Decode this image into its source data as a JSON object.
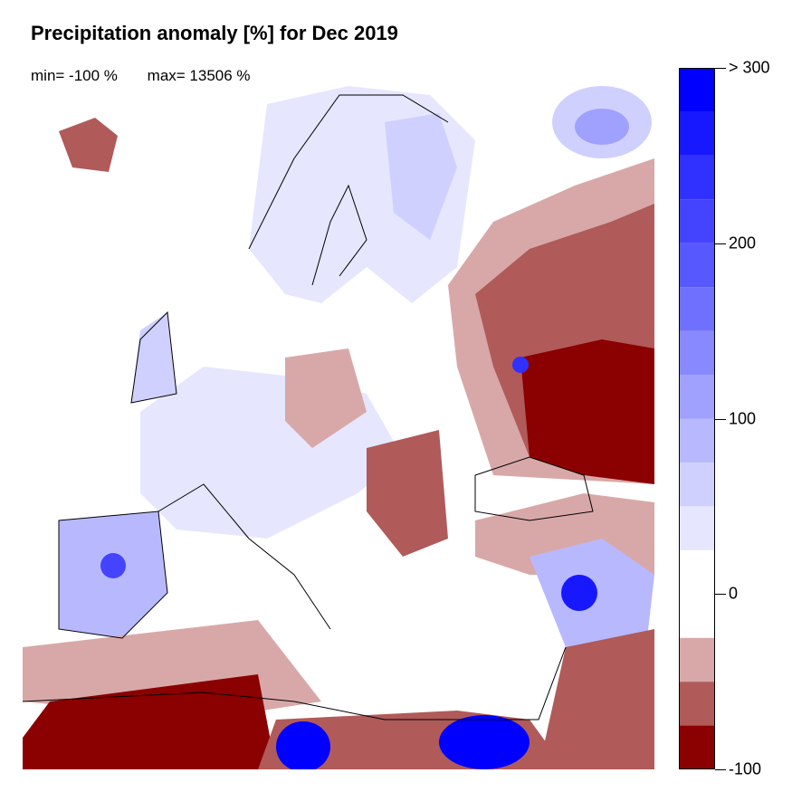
{
  "title": "Precipitation anomaly [%] for Dec 2019",
  "stats": {
    "min": "min= -100 %",
    "max": "max= 13506 %"
  },
  "colorbar": {
    "range": [
      -100,
      300
    ],
    "bin_width": 25,
    "bins": [
      {
        "from": -100,
        "to": -75,
        "color": "#8B0000"
      },
      {
        "from": -75,
        "to": -50,
        "color": "#B05A5A"
      },
      {
        "from": -50,
        "to": -25,
        "color": "#D8A8A8"
      },
      {
        "from": -25,
        "to": 25,
        "color": "#FFFFFF"
      },
      {
        "from": 25,
        "to": 50,
        "color": "#E6E6FF"
      },
      {
        "from": 50,
        "to": 75,
        "color": "#D0D0FF"
      },
      {
        "from": 75,
        "to": 100,
        "color": "#B8B8FF"
      },
      {
        "from": 100,
        "to": 125,
        "color": "#A0A0FF"
      },
      {
        "from": 125,
        "to": 150,
        "color": "#8888FF"
      },
      {
        "from": 150,
        "to": 175,
        "color": "#7070FF"
      },
      {
        "from": 175,
        "to": 200,
        "color": "#5858FF"
      },
      {
        "from": 200,
        "to": 225,
        "color": "#4444FF"
      },
      {
        "from": 225,
        "to": 250,
        "color": "#3030FF"
      },
      {
        "from": 250,
        "to": 275,
        "color": "#1818FF"
      },
      {
        "from": 275,
        "to": 300,
        "color": "#0000FF"
      }
    ],
    "labels": [
      {
        "value": 300,
        "text": "> 300"
      },
      {
        "value": 200,
        "text": "200"
      },
      {
        "value": 100,
        "text": "100"
      },
      {
        "value": 0,
        "text": "0"
      },
      {
        "value": -100,
        "text": "-100"
      }
    ]
  }
}
